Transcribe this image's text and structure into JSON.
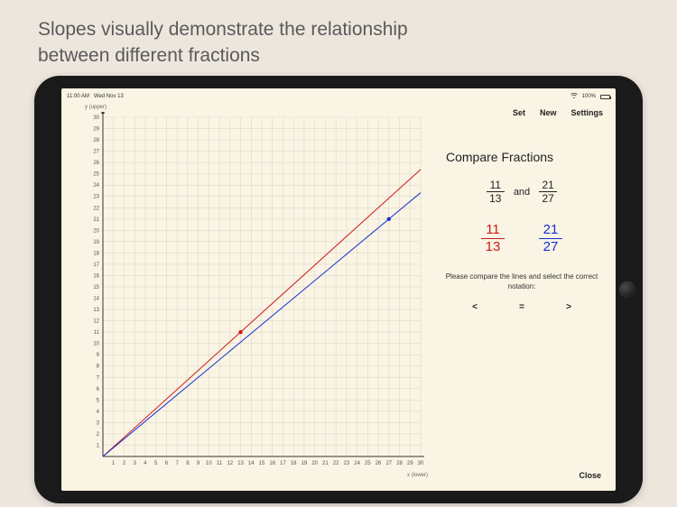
{
  "caption_line1": "Slopes visually demonstrate the relationship",
  "caption_line2": "between different fractions",
  "status": {
    "time": "11:00 AM",
    "date": "Wed Nov 13",
    "battery": "100%"
  },
  "menu": {
    "set": "Set",
    "new": "New",
    "settings": "Settings"
  },
  "chart": {
    "ylabel": "y (upper)",
    "xlabel": "x (lower)",
    "xlim": [
      0,
      30
    ],
    "ylim": [
      0,
      30
    ],
    "tick_step": 1,
    "label_step": 1,
    "grid_color": "#d9d3c2",
    "axis_color": "#333333",
    "background": "#f9f4e4",
    "tick_fontsize": 6,
    "lines": [
      {
        "num": 11,
        "den": 13,
        "color": "#d01818",
        "width": 1,
        "point_x": 13,
        "point_y": 11
      },
      {
        "num": 21,
        "den": 27,
        "color": "#1830d0",
        "width": 1,
        "point_x": 27,
        "point_y": 21
      }
    ],
    "point_radius": 2.2
  },
  "panel": {
    "title": "Compare Fractions",
    "and": "and",
    "frac1": {
      "num": "11",
      "den": "13"
    },
    "frac2": {
      "num": "21",
      "den": "27"
    },
    "instruction": "Please compare the lines and select the correct notation:",
    "lt": "<",
    "eq": "=",
    "gt": ">",
    "close": "Close"
  },
  "colors": {
    "page_bg": "#ede6dd",
    "screen_bg": "#f9f4e4",
    "frame": "#1a1a1a",
    "text": "#333333",
    "red": "#d01818",
    "blue": "#1830d0"
  }
}
